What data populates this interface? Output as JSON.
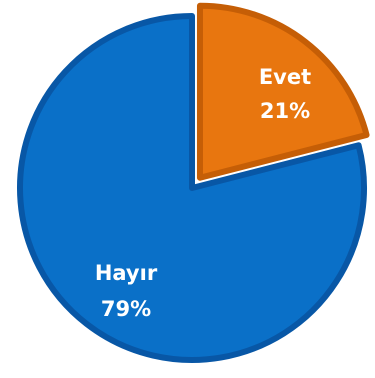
{
  "chart_data": {
    "type": "pie",
    "categories": [
      "Evet",
      "Hayır"
    ],
    "values": [
      21,
      79
    ],
    "value_labels": [
      "21%",
      "79%"
    ],
    "colors": [
      "#E8760F",
      "#0A70C8"
    ],
    "border_colors": [
      "#C55E06",
      "#0857A6"
    ],
    "legend": "none",
    "title": ""
  }
}
